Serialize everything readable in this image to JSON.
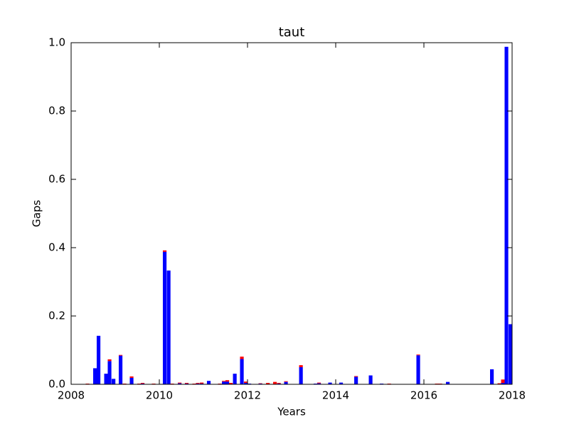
{
  "chart_data": {
    "type": "bar",
    "title": "taut",
    "x_label": "Years",
    "y_label": "Gaps",
    "x": [
      2008.33,
      2008.5,
      2008.58,
      2008.75,
      2008.83,
      2008.92,
      2009.08,
      2009.17,
      2009.33,
      2009.5,
      2009.58,
      2009.83,
      2010.08,
      2010.17,
      2010.25,
      2010.42,
      2010.58,
      2010.75,
      2010.83,
      2010.92,
      2011.08,
      2011.33,
      2011.42,
      2011.5,
      2011.58,
      2011.67,
      2011.83,
      2011.92,
      2012.0,
      2012.25,
      2012.42,
      2012.58,
      2012.67,
      2012.83,
      2013.17,
      2013.5,
      2013.58,
      2013.83,
      2014.08,
      2014.42,
      2014.75,
      2015.0,
      2015.17,
      2015.83,
      2016.25,
      2016.33,
      2016.5,
      2017.5,
      2017.67,
      2017.75,
      2017.83,
      2017.92
    ],
    "series": [
      {
        "name": "blue",
        "color": "#0000ff",
        "values": [
          0,
          0.047,
          0.142,
          0.031,
          0.068,
          0.016,
          0.084,
          0,
          0.019,
          0,
          0.002,
          0,
          0.388,
          0.333,
          0,
          0.003,
          0.002,
          0,
          0.002,
          0.002,
          0.01,
          0,
          0.008,
          0.008,
          0,
          0.031,
          0.074,
          0.004,
          0.002,
          0.002,
          0,
          0,
          0.002,
          0.007,
          0.05,
          0.002,
          0.003,
          0.005,
          0.005,
          0.022,
          0.026,
          0.002,
          0,
          0.085,
          0,
          0,
          0.007,
          0.044,
          0,
          0.004,
          0.988,
          0.176
        ]
      },
      {
        "name": "red",
        "color": "#ff0000",
        "values": [
          0.002,
          0,
          0,
          0,
          0.005,
          0,
          0.002,
          0.002,
          0.004,
          0.002,
          0.002,
          0.002,
          0.004,
          0,
          0.002,
          0.002,
          0.002,
          0.002,
          0.002,
          0.003,
          0,
          0.002,
          0.002,
          0.004,
          0.004,
          0,
          0.007,
          0.004,
          0,
          0.001,
          0.004,
          0.007,
          0.002,
          0.002,
          0.006,
          0,
          0.002,
          0,
          0,
          0.002,
          0,
          0,
          0.002,
          0.002,
          0.002,
          0.002,
          0,
          0,
          0.003,
          0.01,
          0,
          0
        ]
      }
    ],
    "xlim": [
      2008,
      2018
    ],
    "xticks": [
      2008,
      2010,
      2012,
      2014,
      2016,
      2018
    ],
    "ylim": [
      0,
      1
    ],
    "yticks": [
      {
        "value": 0,
        "label": "0.0"
      },
      0.2,
      0.4,
      0.6,
      0.8,
      {
        "value": 1,
        "label": "1.0"
      }
    ]
  }
}
